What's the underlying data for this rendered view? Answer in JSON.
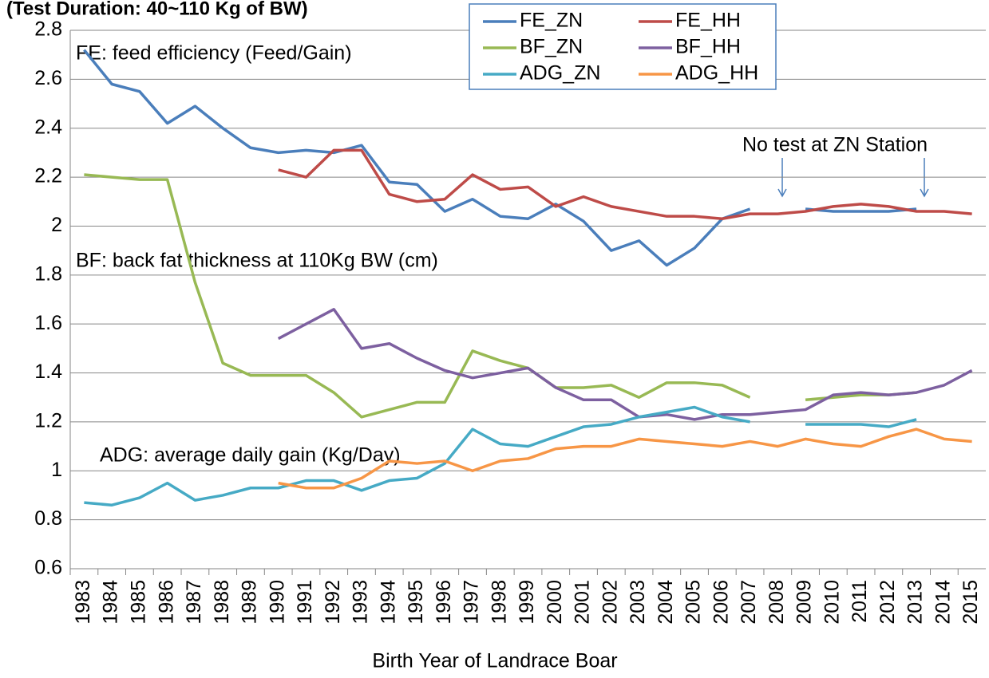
{
  "chart_data": {
    "type": "line",
    "title": "(Test Duration: 40~110 Kg of BW)",
    "x_label": "Birth Year of Landrace Boar",
    "annotations": [
      "FE: feed efficiency (Feed/Gain)",
      "BF: back fat thickness at 110Kg BW (cm)",
      "ADG: average daily gain (Kg/Day)",
      "No test at ZN Station"
    ],
    "categories": [
      "1983",
      "1984",
      "1985",
      "1986",
      "1987",
      "1988",
      "1989",
      "1990",
      "1991",
      "1992",
      "1993",
      "1994",
      "1995",
      "1996",
      "1997",
      "1998",
      "1999",
      "2000",
      "2001",
      "2002",
      "2003",
      "2004",
      "2005",
      "2006",
      "2007",
      "2008",
      "2009",
      "2010",
      "2011",
      "2012",
      "2013",
      "2014",
      "2015"
    ],
    "ylim": [
      0.6,
      2.8
    ],
    "yticks": [
      0.6,
      0.8,
      1,
      1.2,
      1.4,
      1.6,
      1.8,
      2,
      2.2,
      2.4,
      2.6,
      2.8
    ],
    "grid": true,
    "series": [
      {
        "name": "FE_ZN",
        "color": "#4a7ebb",
        "values": [
          2.72,
          2.58,
          2.55,
          2.42,
          2.49,
          2.4,
          2.32,
          2.3,
          2.31,
          2.3,
          2.33,
          2.18,
          2.17,
          2.06,
          2.11,
          2.04,
          2.03,
          2.09,
          2.02,
          1.9,
          1.94,
          1.84,
          1.91,
          2.03,
          2.07,
          null,
          2.07,
          2.06,
          2.06,
          2.06,
          2.07,
          null,
          null
        ]
      },
      {
        "name": "FE_HH",
        "color": "#be4b48",
        "values": [
          null,
          null,
          null,
          null,
          null,
          null,
          null,
          2.23,
          2.2,
          2.31,
          2.31,
          2.13,
          2.1,
          2.11,
          2.21,
          2.15,
          2.16,
          2.08,
          2.12,
          2.08,
          2.06,
          2.04,
          2.04,
          2.03,
          2.05,
          2.05,
          2.06,
          2.08,
          2.09,
          2.08,
          2.06,
          2.06,
          2.05
        ]
      },
      {
        "name": "BF_ZN",
        "color": "#98b954",
        "values": [
          2.21,
          2.2,
          2.19,
          2.19,
          1.77,
          1.44,
          1.39,
          1.39,
          1.39,
          1.32,
          1.22,
          1.25,
          1.28,
          1.28,
          1.49,
          1.45,
          1.42,
          1.34,
          1.34,
          1.35,
          1.3,
          1.36,
          1.36,
          1.35,
          1.3,
          null,
          1.29,
          1.3,
          1.31,
          1.31,
          1.32,
          null,
          null
        ]
      },
      {
        "name": "BF_HH",
        "color": "#7d60a0",
        "values": [
          null,
          null,
          null,
          null,
          null,
          null,
          null,
          1.54,
          1.6,
          1.66,
          1.5,
          1.52,
          1.46,
          1.41,
          1.38,
          1.4,
          1.42,
          1.34,
          1.29,
          1.29,
          1.22,
          1.23,
          1.21,
          1.23,
          1.23,
          1.24,
          1.25,
          1.31,
          1.32,
          1.31,
          1.32,
          1.35,
          1.41
        ]
      },
      {
        "name": "ADG_ZN",
        "color": "#46aac5",
        "values": [
          0.87,
          0.86,
          0.89,
          0.95,
          0.88,
          0.9,
          0.93,
          0.93,
          0.96,
          0.96,
          0.92,
          0.96,
          0.97,
          1.03,
          1.17,
          1.11,
          1.1,
          1.14,
          1.18,
          1.19,
          1.22,
          1.24,
          1.26,
          1.22,
          1.2,
          null,
          1.19,
          1.19,
          1.19,
          1.18,
          1.21,
          null,
          null
        ]
      },
      {
        "name": "ADG_HH",
        "color": "#f79646",
        "values": [
          null,
          null,
          null,
          null,
          null,
          null,
          null,
          0.95,
          0.93,
          0.93,
          0.97,
          1.04,
          1.03,
          1.04,
          1.0,
          1.04,
          1.05,
          1.09,
          1.1,
          1.1,
          1.13,
          1.12,
          1.11,
          1.1,
          1.12,
          1.1,
          1.13,
          1.11,
          1.1,
          1.14,
          1.17,
          1.13,
          1.12
        ]
      }
    ]
  }
}
